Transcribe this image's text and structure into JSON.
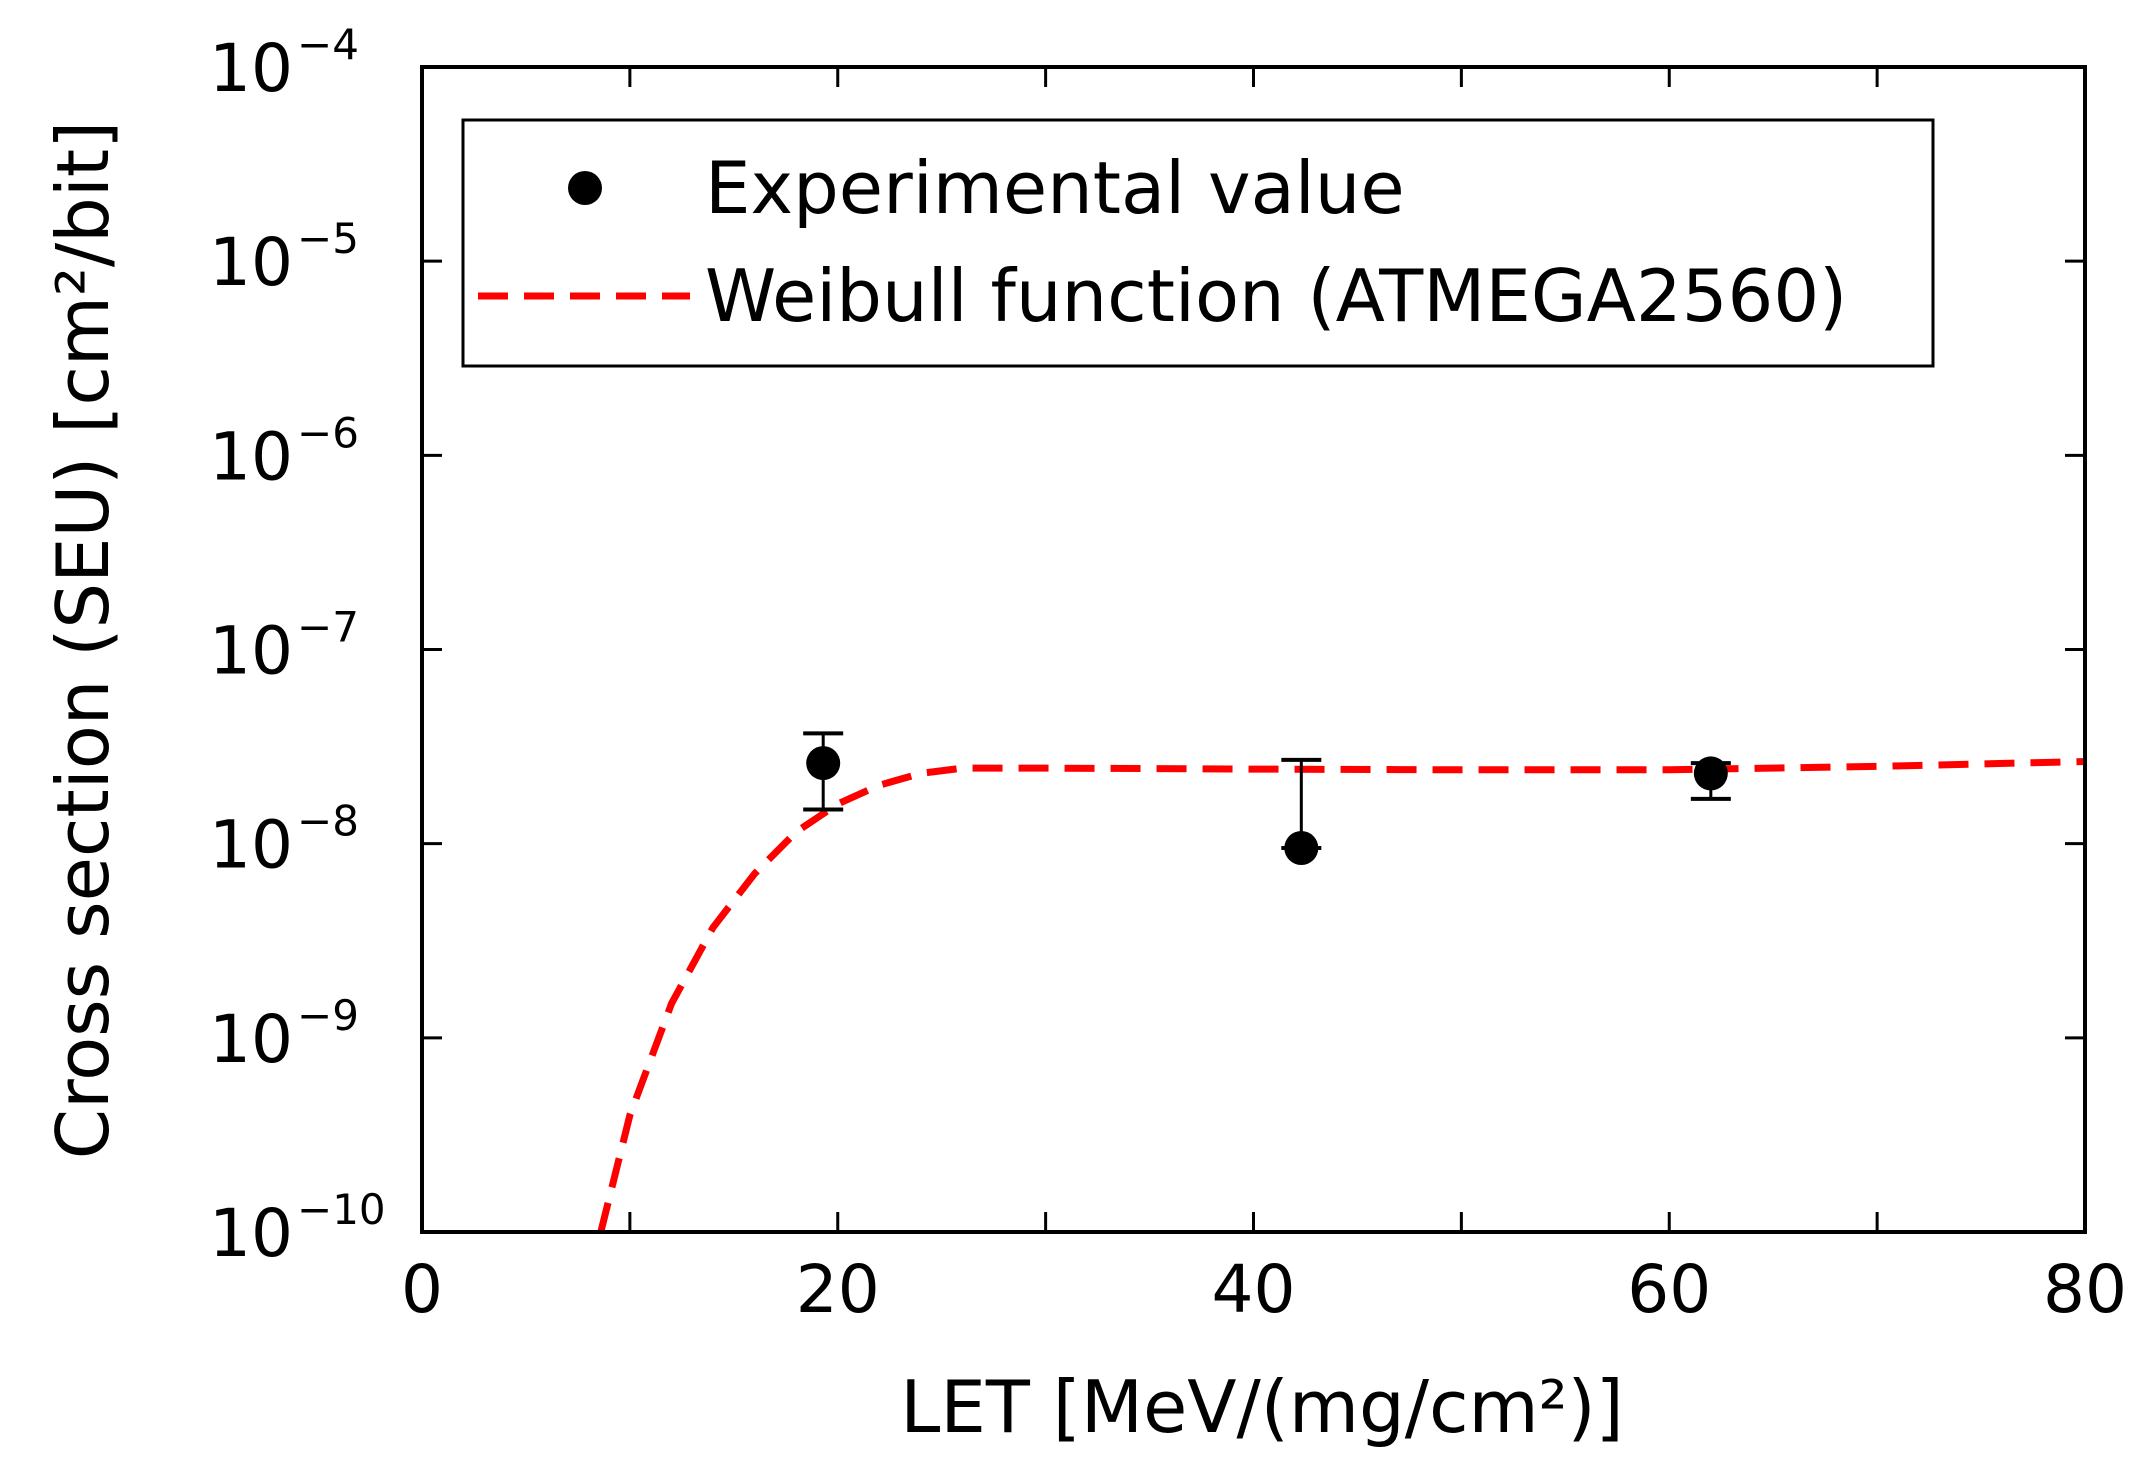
{
  "chart_data": {
    "type": "scatter",
    "xlabel": "LET [MeV/(mg/cm²)]",
    "ylabel": "Cross section (SEU) [cm²/bit]",
    "x_scale": "linear",
    "y_scale": "log",
    "xlim": [
      0,
      80
    ],
    "ylim": [
      1e-10,
      0.0001
    ],
    "x_ticks": [
      0,
      20,
      40,
      60,
      80
    ],
    "x_minor_ticks": [
      10,
      30,
      50,
      70
    ],
    "y_tick_exponents": [
      -10,
      -9,
      -8,
      -7,
      -6,
      -5,
      -4
    ],
    "y_tick_base": "10",
    "legend_position": "top",
    "series": [
      {
        "name": "Experimental value",
        "kind": "points",
        "color": "#000000",
        "points": [
          {
            "x": 19.3,
            "y": 2.6e-08,
            "y_lo": 1.5e-08,
            "y_hi": 3.7e-08
          },
          {
            "x": 42.3,
            "y": 9.5e-09,
            "y_lo": 9.5e-09,
            "y_hi": 2.7e-08
          },
          {
            "x": 62.0,
            "y": 2.3e-08,
            "y_lo": 1.7e-08,
            "y_hi": 2.6e-08
          }
        ]
      },
      {
        "name": "Weibull function (ATMEGA2560)",
        "kind": "line",
        "style": "dashed",
        "color": "#ff0000",
        "points": [
          {
            "x": 8.6,
            "y": 1e-10
          },
          {
            "x": 10,
            "y": 4e-10
          },
          {
            "x": 12,
            "y": 1.5e-09
          },
          {
            "x": 14,
            "y": 3.7e-09
          },
          {
            "x": 16,
            "y": 7e-09
          },
          {
            "x": 18,
            "y": 1.15e-08
          },
          {
            "x": 20,
            "y": 1.6e-08
          },
          {
            "x": 22,
            "y": 2e-08
          },
          {
            "x": 24,
            "y": 2.3e-08
          },
          {
            "x": 26,
            "y": 2.45e-08
          },
          {
            "x": 30,
            "y": 2.45e-08
          },
          {
            "x": 40,
            "y": 2.42e-08
          },
          {
            "x": 50,
            "y": 2.4e-08
          },
          {
            "x": 60,
            "y": 2.4e-08
          },
          {
            "x": 70,
            "y": 2.5e-08
          },
          {
            "x": 80,
            "y": 2.65e-08
          }
        ]
      }
    ]
  }
}
